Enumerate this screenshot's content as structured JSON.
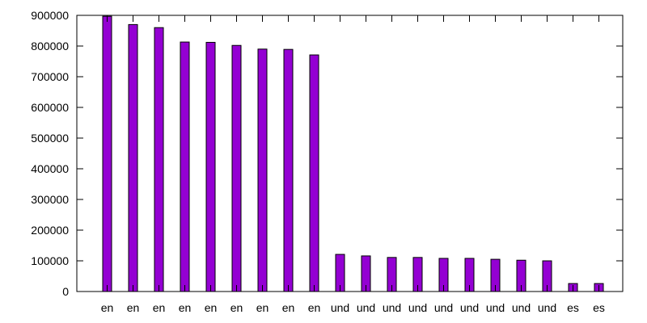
{
  "chart_data": {
    "type": "bar",
    "categories": [
      "en",
      "en",
      "en",
      "en",
      "en",
      "en",
      "en",
      "en",
      "en",
      "und",
      "und",
      "und",
      "und",
      "und",
      "und",
      "und",
      "und",
      "und",
      "es",
      "es"
    ],
    "values": [
      897000,
      870000,
      860000,
      813000,
      812000,
      802000,
      790000,
      789000,
      771000,
      121000,
      116000,
      111000,
      111000,
      108000,
      108000,
      105000,
      102000,
      100000,
      26000,
      26000
    ],
    "ylim": [
      0,
      900000
    ],
    "yticks": [
      0,
      100000,
      200000,
      300000,
      400000,
      500000,
      600000,
      700000,
      800000,
      900000
    ],
    "ytick_labels": [
      "0",
      "100000",
      "200000",
      "300000",
      "400000",
      "500000",
      "600000",
      "700000",
      "800000",
      "900000"
    ],
    "grid": false,
    "legend": "none",
    "bar_color": "#9400D3",
    "bar_edge_color": "#000000"
  }
}
